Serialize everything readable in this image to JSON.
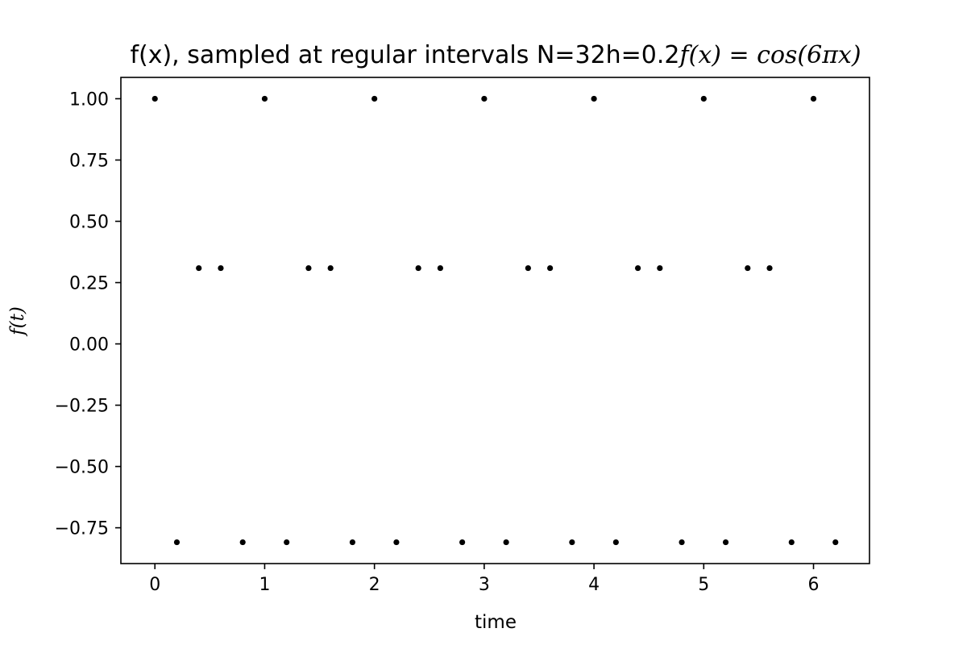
{
  "chart_data": {
    "type": "scatter",
    "title_prefix": "f(x), sampled at regular intervals N=32h=0.2",
    "title_math": "f(x) = cos(6πx)",
    "xlabel": "time",
    "ylabel": "f(t)",
    "xlim": [
      -0.31,
      6.51
    ],
    "ylim": [
      -0.896,
      1.087
    ],
    "x_ticks": [
      0,
      1,
      2,
      3,
      4,
      5,
      6
    ],
    "x_tick_labels": [
      "0",
      "1",
      "2",
      "3",
      "4",
      "5",
      "6"
    ],
    "y_ticks": [
      1.0,
      0.75,
      0.5,
      0.25,
      0.0,
      -0.25,
      -0.5,
      -0.75
    ],
    "y_tick_labels": [
      "1.00",
      "0.75",
      "0.50",
      "0.25",
      "0.00",
      "−0.25",
      "−0.50",
      "−0.75"
    ],
    "marker_color": "#000000",
    "grid": false,
    "points": [
      [
        0.0,
        1.0
      ],
      [
        0.2,
        -0.809
      ],
      [
        0.4,
        0.309
      ],
      [
        0.6,
        0.309
      ],
      [
        0.8,
        -0.809
      ],
      [
        1.0,
        1.0
      ],
      [
        1.2,
        -0.809
      ],
      [
        1.4,
        0.309
      ],
      [
        1.6,
        0.309
      ],
      [
        1.8,
        -0.809
      ],
      [
        2.0,
        1.0
      ],
      [
        2.2,
        -0.809
      ],
      [
        2.4,
        0.309
      ],
      [
        2.6,
        0.309
      ],
      [
        2.8,
        -0.809
      ],
      [
        3.0,
        1.0
      ],
      [
        3.2,
        -0.809
      ],
      [
        3.4,
        0.309
      ],
      [
        3.6,
        0.309
      ],
      [
        3.8,
        -0.809
      ],
      [
        4.0,
        1.0
      ],
      [
        4.2,
        -0.809
      ],
      [
        4.4,
        0.309
      ],
      [
        4.6,
        0.309
      ],
      [
        4.8,
        -0.809
      ],
      [
        5.0,
        1.0
      ],
      [
        5.2,
        -0.809
      ],
      [
        5.4,
        0.309
      ],
      [
        5.6,
        0.309
      ],
      [
        5.8,
        -0.809
      ],
      [
        6.0,
        1.0
      ],
      [
        6.2,
        -0.809
      ]
    ]
  }
}
